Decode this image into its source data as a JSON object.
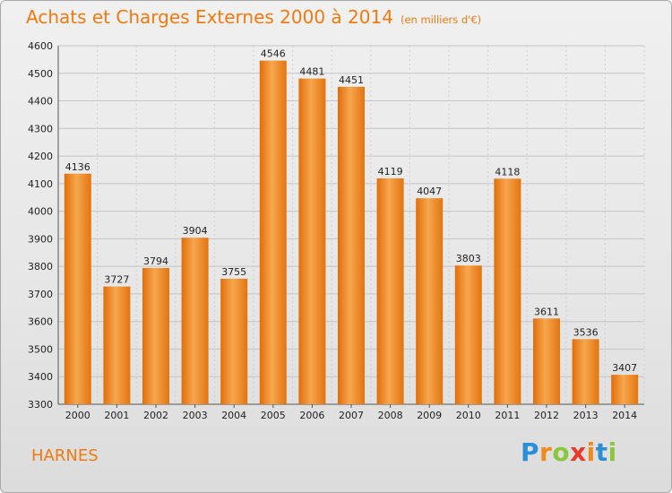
{
  "header": {
    "title": "Achats et Charges Externes 2000 à 2014",
    "unit": "(en milliers d'€)"
  },
  "footer": {
    "city": "HARNES",
    "logo_letters": [
      "P",
      "r",
      "o",
      "x",
      "i",
      "t",
      "i"
    ],
    "logo_colors": [
      "#2b8fd6",
      "#f08a1c",
      "#8cc63f",
      "#e8392c",
      "#f08a1c",
      "#2b8fd6",
      "#8cc63f"
    ]
  },
  "chart_data": {
    "type": "bar",
    "title": "Achats et Charges Externes 2000 à 2014",
    "subtitle": "(en milliers d'€)",
    "categories": [
      "2000",
      "2001",
      "2002",
      "2003",
      "2004",
      "2005",
      "2006",
      "2007",
      "2008",
      "2009",
      "2010",
      "2011",
      "2012",
      "2013",
      "2014"
    ],
    "values": [
      4136,
      3727,
      3794,
      3904,
      3755,
      4546,
      4481,
      4451,
      4119,
      4047,
      3803,
      4118,
      3611,
      3536,
      3407
    ],
    "ylim": [
      3300,
      4600
    ],
    "yticks": [
      3300,
      3400,
      3500,
      3600,
      3700,
      3800,
      3900,
      4000,
      4100,
      4200,
      4300,
      4400,
      4500,
      4600
    ],
    "grid": true,
    "bar_color": "#f08a1c",
    "xlabel": "",
    "ylabel": ""
  }
}
